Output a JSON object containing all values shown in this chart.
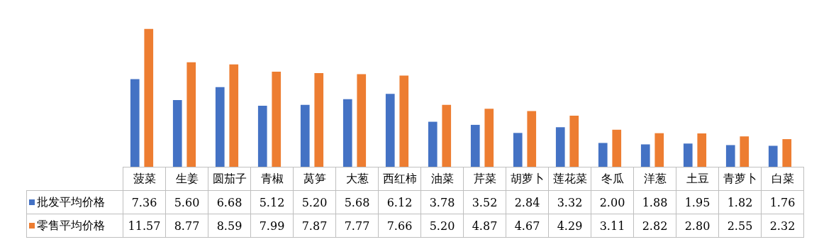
{
  "chart_data": {
    "type": "bar",
    "categories": [
      "菠菜",
      "生姜",
      "圆茄子",
      "青椒",
      "莴笋",
      "大葱",
      "西红柿",
      "油菜",
      "芹菜",
      "胡萝卜",
      "莲花菜",
      "冬瓜",
      "洋葱",
      "土豆",
      "青萝卜",
      "白菜"
    ],
    "series": [
      {
        "name": "批发平均价格",
        "color": "#4472c4",
        "values": [
          7.36,
          5.6,
          6.68,
          5.12,
          5.2,
          5.68,
          6.12,
          3.78,
          3.52,
          2.84,
          3.32,
          2.0,
          1.88,
          1.95,
          1.82,
          1.76
        ],
        "value_labels": [
          "7.36",
          "5.60",
          "6.68",
          "5.12",
          "5.20",
          "5.68",
          "6.12",
          "3.78",
          "3.52",
          "2.84",
          "3.32",
          "2.00",
          "1.88",
          "1.95",
          "1.82",
          "1.76"
        ]
      },
      {
        "name": "零售平均价格",
        "color": "#ed7d31",
        "values": [
          11.57,
          8.77,
          8.59,
          7.99,
          7.87,
          7.77,
          7.66,
          5.2,
          4.87,
          4.67,
          4.29,
          3.11,
          2.82,
          2.8,
          2.55,
          2.32
        ],
        "value_labels": [
          "11.57",
          "8.77",
          "8.59",
          "7.99",
          "7.87",
          "7.77",
          "7.66",
          "5.20",
          "4.87",
          "4.67",
          "4.29",
          "3.11",
          "2.82",
          "2.80",
          "2.55",
          "2.32"
        ]
      }
    ],
    "legend": "bottom",
    "grid": false
  }
}
